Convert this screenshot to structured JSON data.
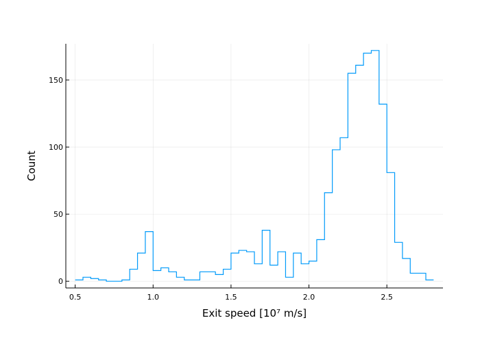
{
  "chart_data": {
    "type": "histogram",
    "title": "",
    "xlabel": "Exit speed [10⁷ m/s]",
    "ylabel": "Count",
    "xlim": [
      0.44,
      2.86
    ],
    "ylim": [
      -5,
      177
    ],
    "xticks": [
      0.5,
      1.0,
      1.5,
      2.0,
      2.5
    ],
    "xtick_labels": [
      "0.5",
      "1.0",
      "1.5",
      "2.0",
      "2.5"
    ],
    "yticks": [
      0,
      50,
      100,
      150
    ],
    "ytick_labels": [
      "0",
      "50",
      "100",
      "150"
    ],
    "grid": true,
    "legend": "none",
    "color": "#009AFA",
    "bin_edges": [
      0.5,
      0.55,
      0.6,
      0.65,
      0.7,
      0.75,
      0.8,
      0.85,
      0.9,
      0.95,
      1.0,
      1.05,
      1.1,
      1.15,
      1.2,
      1.25,
      1.3,
      1.35,
      1.4,
      1.45,
      1.5,
      1.55,
      1.6,
      1.65,
      1.7,
      1.75,
      1.8,
      1.85,
      1.9,
      1.95,
      2.0,
      2.05,
      2.1,
      2.15,
      2.2,
      2.25,
      2.3,
      2.35,
      2.4,
      2.45,
      2.5,
      2.55,
      2.6,
      2.65,
      2.7,
      2.75,
      2.8
    ],
    "counts": [
      1,
      3,
      2,
      1,
      0,
      0,
      1,
      9,
      21,
      37,
      8,
      10,
      7,
      3,
      1,
      1,
      7,
      7,
      5,
      9,
      21,
      23,
      22,
      13,
      38,
      12,
      22,
      3,
      21,
      13,
      15,
      31,
      66,
      98,
      107,
      155,
      161,
      170,
      172,
      132,
      81,
      29,
      17,
      6,
      6,
      1
    ]
  }
}
